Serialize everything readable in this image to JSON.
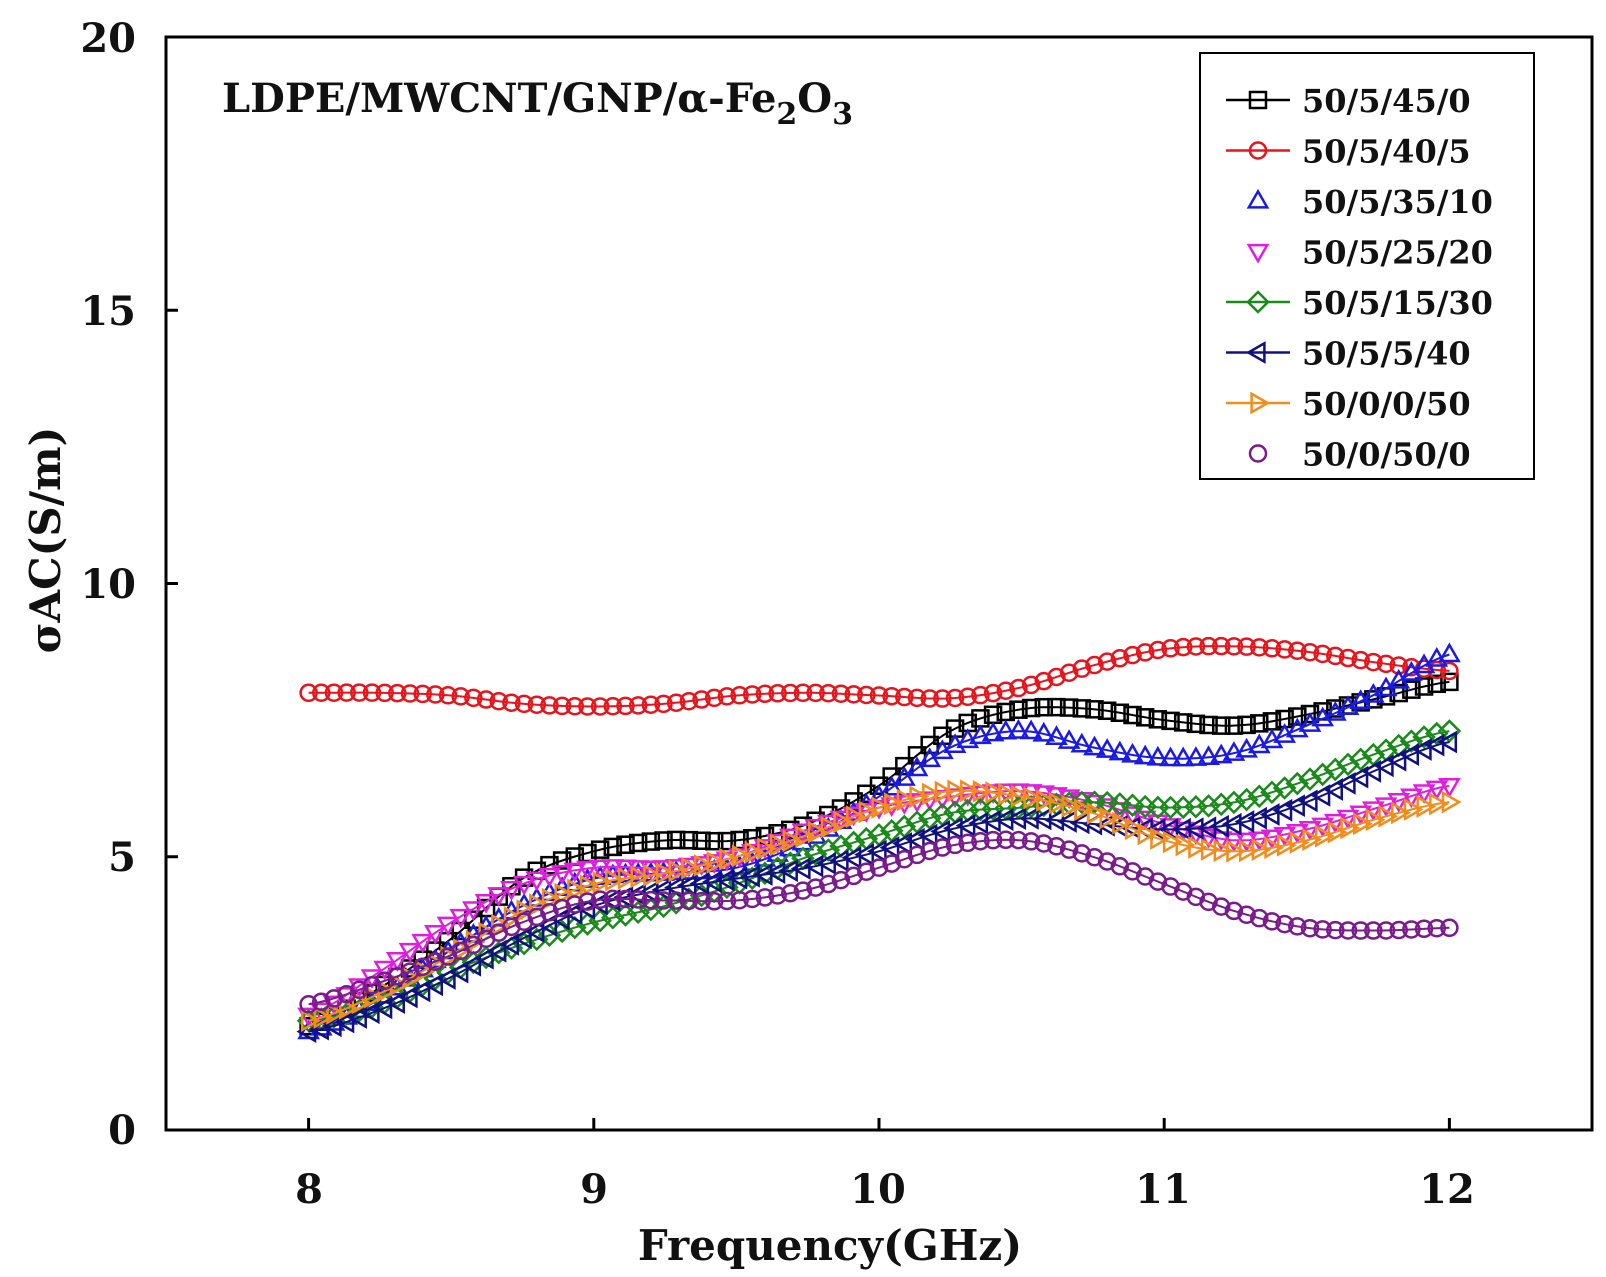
{
  "chart_data": {
    "type": "line",
    "title": "",
    "annotation": {
      "main": "LDPE/MWCNT/GNP/α-Fe",
      "sub1": "2",
      "mid": "O",
      "sub2": "3"
    },
    "xlabel": "Frequency(GHz)",
    "ylabel": "σAC(S/m)",
    "xlim": [
      7.5,
      12.5
    ],
    "ylim": [
      0,
      20
    ],
    "xticks": [
      8,
      9,
      10,
      11,
      12
    ],
    "yticks": [
      0,
      5,
      10,
      15,
      20
    ],
    "legend_position": "top-right",
    "x": [
      8.0,
      8.25,
      8.5,
      8.75,
      9.0,
      9.25,
      9.5,
      9.75,
      10.0,
      10.25,
      10.5,
      10.75,
      11.0,
      11.25,
      11.5,
      11.75,
      12.0
    ],
    "series": [
      {
        "name": "50/5/45/0",
        "color": "#000000",
        "marker": "square",
        "values": [
          1.9,
          2.6,
          3.5,
          4.6,
          5.1,
          5.3,
          5.3,
          5.6,
          6.3,
          7.3,
          7.7,
          7.7,
          7.5,
          7.4,
          7.6,
          7.9,
          8.2
        ]
      },
      {
        "name": "50/5/40/5",
        "color": "#e8141c",
        "marker": "circle",
        "values": [
          8.0,
          8.0,
          7.95,
          7.8,
          7.75,
          7.8,
          7.95,
          8.0,
          7.95,
          7.9,
          8.1,
          8.5,
          8.8,
          8.85,
          8.75,
          8.55,
          8.4
        ]
      },
      {
        "name": "50/5/35/10",
        "color": "#1a1ae6",
        "marker": "triangle-up",
        "values": [
          1.8,
          2.4,
          3.3,
          4.1,
          4.6,
          4.7,
          4.8,
          5.3,
          6.1,
          7.0,
          7.3,
          7.0,
          6.8,
          6.9,
          7.4,
          8.0,
          8.7
        ]
      },
      {
        "name": "50/5/25/20",
        "color": "#e01ee0",
        "marker": "triangle-down",
        "values": [
          2.1,
          2.9,
          3.8,
          4.5,
          4.8,
          4.8,
          5.0,
          5.5,
          5.9,
          6.1,
          6.2,
          6.0,
          5.6,
          5.3,
          5.5,
          5.9,
          6.3
        ]
      },
      {
        "name": "50/5/15/30",
        "color": "#1a8a1a",
        "marker": "diamond",
        "values": [
          2.0,
          2.3,
          2.9,
          3.4,
          3.8,
          4.1,
          4.5,
          5.0,
          5.4,
          5.8,
          5.9,
          6.0,
          5.9,
          6.0,
          6.4,
          6.9,
          7.3
        ]
      },
      {
        "name": "50/5/5/40",
        "color": "#101080",
        "marker": "triangle-left",
        "values": [
          1.8,
          2.2,
          2.8,
          3.5,
          4.1,
          4.4,
          4.6,
          4.8,
          5.1,
          5.5,
          5.7,
          5.6,
          5.5,
          5.6,
          6.0,
          6.6,
          7.1
        ]
      },
      {
        "name": "50/0/0/50",
        "color": "#f28c1c",
        "marker": "triangle-right",
        "values": [
          2.0,
          2.5,
          3.2,
          4.0,
          4.5,
          4.7,
          5.0,
          5.4,
          5.9,
          6.2,
          6.1,
          5.8,
          5.3,
          5.1,
          5.3,
          5.7,
          6.0
        ]
      },
      {
        "name": "50/0/50/0",
        "color": "#7a1a8c",
        "marker": "circle",
        "values": [
          2.3,
          2.7,
          3.2,
          3.8,
          4.2,
          4.2,
          4.2,
          4.4,
          4.8,
          5.2,
          5.3,
          5.0,
          4.5,
          4.0,
          3.7,
          3.65,
          3.7
        ]
      }
    ]
  }
}
